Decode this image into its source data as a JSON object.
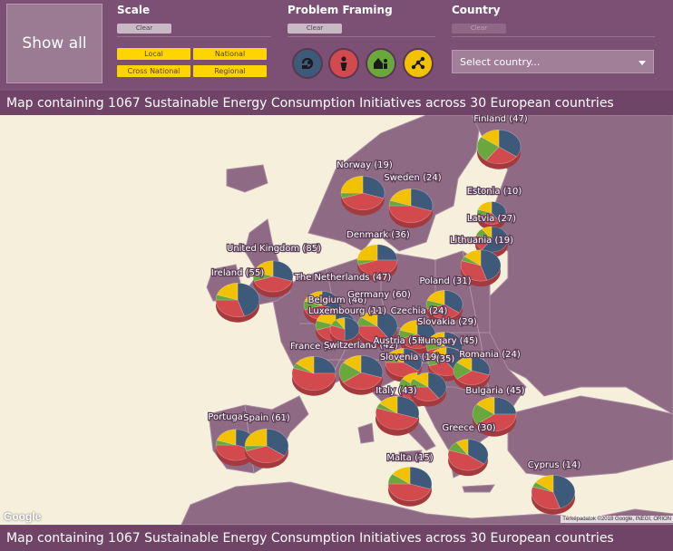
{
  "header": {
    "show_all_label": "Show all",
    "scale": {
      "title": "Scale",
      "clear_label": "Clear",
      "buttons": [
        {
          "key": "local",
          "label": "Local"
        },
        {
          "key": "national",
          "label": "National"
        },
        {
          "key": "cross_national",
          "label": "Cross National"
        },
        {
          "key": "regional",
          "label": "Regional"
        }
      ]
    },
    "framing": {
      "title": "Problem Framing",
      "clear_label": "Clear",
      "buttons": [
        {
          "icon": "energy-plug-icon",
          "color": "#3d5a7a"
        },
        {
          "icon": "person-icon",
          "color": "#d24a4e"
        },
        {
          "icon": "community-house-icon",
          "color": "#6aa83e"
        },
        {
          "icon": "network-icon",
          "color": "#f2c100"
        }
      ]
    },
    "country": {
      "title": "Country",
      "clear_label": "Clear",
      "select_placeholder": "Select country..."
    }
  },
  "banner_text": "Map containing 1067 Sustainable Energy Consumption Initiatives across 30 European countries",
  "map": {
    "pie_colors": [
      "#3d5a7a",
      "#d24a4e",
      "#6aa83e",
      "#f2c100"
    ],
    "attribution": "Térképadatok ©2018 Google, INEGI, ORION",
    "google_logo": "Google",
    "countries": [
      {
        "label": "Finland (47)"
      },
      {
        "label": "Norway (19)"
      },
      {
        "label": "Sweden (24)"
      },
      {
        "label": "Estonia (10)"
      },
      {
        "label": "Latvia (27)"
      },
      {
        "label": "Denmark (36)"
      },
      {
        "label": "Lithuania (19)"
      },
      {
        "label": "United Kingdom (85)"
      },
      {
        "label": "Ireland (55)"
      },
      {
        "label": "The Netherlands (47)"
      },
      {
        "label": "Poland (31)"
      },
      {
        "label": "Belgium (46)"
      },
      {
        "label": "Germany (60)"
      },
      {
        "label": "Luxembourg (11)"
      },
      {
        "label": "Czechia (24)"
      },
      {
        "label": "Slovakia (29)"
      },
      {
        "label": "France (5"
      },
      {
        "label": "Switzerland (42)"
      },
      {
        "label": "Austria (54)"
      },
      {
        "label": "Hungary (45)"
      },
      {
        "label": "Slovenia (19)"
      },
      {
        "label": "(35)"
      },
      {
        "label": "Romania (24)"
      },
      {
        "label": "Italy (43)"
      },
      {
        "label": "Bulgaria (45)"
      },
      {
        "label": "Portugal"
      },
      {
        "label": "Spain (61)"
      },
      {
        "label": "Greece (30)"
      },
      {
        "label": "Malta (15)"
      },
      {
        "label": "Cyprus (14)"
      }
    ]
  }
}
